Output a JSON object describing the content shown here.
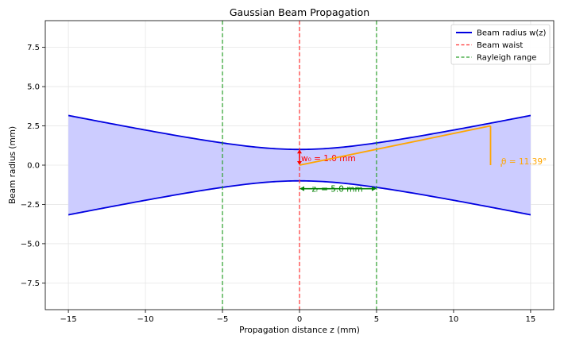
{
  "chart_data": {
    "type": "line",
    "title": "Gaussian Beam Propagation",
    "xlabel": "Propagation distance z (mm)",
    "ylabel": "Beam radius (mm)",
    "xlim": [
      -16.5,
      16.5
    ],
    "ylim": [
      -9.2,
      9.2
    ],
    "xticks": [
      -15,
      -10,
      -5,
      0,
      5,
      10,
      15
    ],
    "xtick_labels": [
      "−15",
      "−10",
      "−5",
      "0",
      "5",
      "10",
      "15"
    ],
    "yticks": [
      -7.5,
      -5.0,
      -2.5,
      0.0,
      2.5,
      5.0,
      7.5
    ],
    "ytick_labels": [
      "−7.5",
      "−5.0",
      "−2.5",
      "0.0",
      "2.5",
      "5.0",
      "7.5"
    ],
    "grid": true,
    "legend_position": "top-right",
    "beam": {
      "w0": 1.0,
      "zR": 5.0,
      "z_range": [
        -15,
        15
      ]
    },
    "series": [
      {
        "name": "Beam radius w(z)",
        "color": "#0000e0",
        "style": "solid",
        "x": [
          -15,
          -10,
          -5,
          0,
          5,
          10,
          15
        ],
        "y": [
          3.16,
          2.24,
          1.41,
          1.0,
          1.41,
          2.24,
          3.16
        ]
      },
      {
        "name": "Beam waist",
        "color": "#ff3333",
        "style": "dashed",
        "x": [
          0,
          0
        ]
      },
      {
        "name": "Rayleigh range",
        "color": "#2ca02c",
        "style": "dashed",
        "x": [
          -5,
          5
        ]
      }
    ],
    "annotations": {
      "waist_label": "w₀ = 1.0 mm",
      "rayleigh_label": "zᵣ = 5.0 mm",
      "angle_label": "θ = 11.39°",
      "divergence_line": {
        "x": [
          0,
          12.4
        ],
        "y": [
          0,
          2.5
        ]
      },
      "colors": {
        "waist": "#ff0000",
        "rayleigh": "#008000",
        "angle": "#ffa500"
      }
    },
    "fill_color": "#ccccff"
  }
}
